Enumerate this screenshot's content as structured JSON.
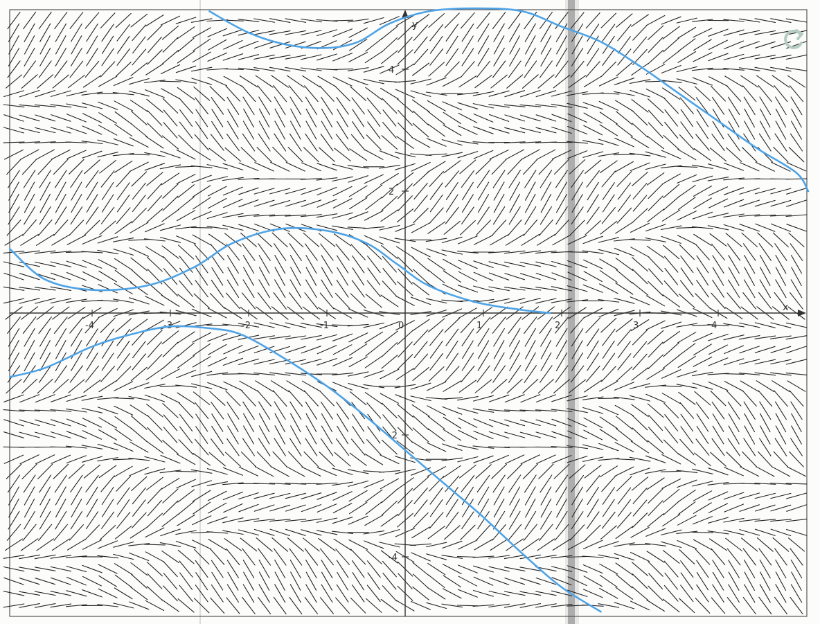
{
  "chart_data": {
    "type": "slope-field",
    "xlabel": "x",
    "ylabel": "y",
    "xlim": [
      -5.1,
      5.1
    ],
    "ylim": [
      -4.9,
      4.9
    ],
    "x_ticks": [
      -4,
      -3,
      -2,
      -1,
      0,
      1,
      2,
      3,
      4
    ],
    "x_tick_labels": [
      "-4",
      "-3",
      "-2",
      "-1",
      "0",
      "1",
      "2",
      "3",
      "4"
    ],
    "y_ticks": [
      4,
      2,
      -2,
      -4
    ],
    "y_tick_labels": [
      "4",
      "2",
      "-2",
      "-4"
    ],
    "slope_field_grid_step": 0.2,
    "curves": [
      {
        "points": [
          [
            -5.05,
            1.05
          ],
          [
            -4.6,
            0.55
          ],
          [
            -4.0,
            0.38
          ],
          [
            -3.3,
            0.45
          ],
          [
            -2.7,
            0.75
          ],
          [
            -2.2,
            1.15
          ],
          [
            -1.6,
            1.38
          ],
          [
            -1.0,
            1.35
          ],
          [
            -0.5,
            1.15
          ],
          [
            -0.1,
            0.8
          ],
          [
            0.3,
            0.45
          ],
          [
            0.9,
            0.18
          ],
          [
            1.5,
            0.05
          ],
          [
            1.85,
            0.0
          ]
        ]
      },
      {
        "points": [
          [
            -5.05,
            -1.05
          ],
          [
            -4.6,
            -0.9
          ],
          [
            -4.0,
            -0.55
          ],
          [
            -3.5,
            -0.35
          ],
          [
            -3.0,
            -0.22
          ],
          [
            -2.5,
            -0.25
          ],
          [
            -2.1,
            -0.35
          ],
          [
            -1.6,
            -0.7
          ],
          [
            -1.0,
            -1.2
          ],
          [
            -0.5,
            -1.7
          ],
          [
            0.0,
            -2.25
          ],
          [
            0.5,
            -2.8
          ],
          [
            1.0,
            -3.35
          ],
          [
            1.5,
            -3.95
          ],
          [
            2.0,
            -4.5
          ],
          [
            2.5,
            -4.9
          ]
        ]
      },
      {
        "points": [
          [
            -2.5,
            4.95
          ],
          [
            -2.0,
            4.6
          ],
          [
            -1.5,
            4.4
          ],
          [
            -1.0,
            4.35
          ],
          [
            -0.6,
            4.45
          ],
          [
            -0.2,
            4.75
          ],
          [
            0.3,
            4.95
          ],
          [
            0.9,
            5.0
          ],
          [
            1.5,
            4.95
          ],
          [
            2.0,
            4.7
          ],
          [
            2.5,
            4.45
          ],
          [
            3.0,
            4.05
          ],
          [
            3.5,
            3.6
          ],
          [
            4.0,
            3.15
          ],
          [
            4.5,
            2.7
          ],
          [
            5.0,
            2.3
          ],
          [
            5.15,
            2.0
          ]
        ]
      }
    ],
    "colors": {
      "slope_segment": "#222222",
      "solution_curve": "#4da3e6",
      "axes": "#333333"
    }
  },
  "controls": {
    "reset_icon": "refresh-icon",
    "reset_color": "#b5ccc4"
  }
}
